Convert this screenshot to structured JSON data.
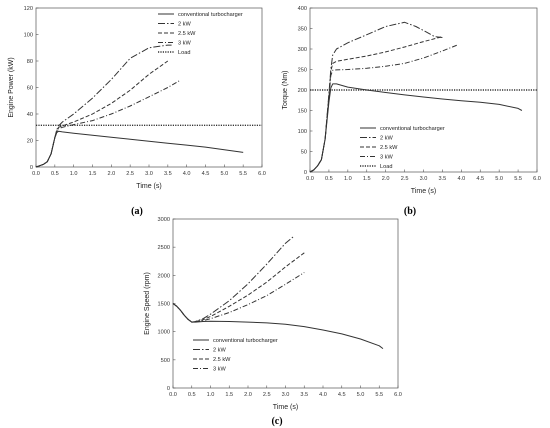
{
  "chart_data": [
    {
      "type": "line",
      "panel_label": "(a)",
      "xlabel": "Time (s)",
      "ylabel": "Engine Power (kW)",
      "xlim": [
        0,
        6
      ],
      "ylim": [
        0,
        120
      ],
      "xticks": [
        "0.0",
        "0.5",
        "1.0",
        "1.5",
        "2.0",
        "2.5",
        "3.0",
        "3.5",
        "4.0",
        "4.5",
        "5.0",
        "5.5",
        "6.0"
      ],
      "yticks": [
        "0",
        "20",
        "40",
        "60",
        "80",
        "100",
        "120"
      ],
      "legend": "top-right",
      "series": [
        {
          "name": "conventional turbocharger",
          "style": "solid",
          "x": [
            0,
            0.1,
            0.2,
            0.3,
            0.4,
            0.5,
            0.55,
            0.6,
            0.7,
            1.0,
            1.5,
            2.0,
            2.5,
            3.0,
            3.5,
            4.0,
            4.5,
            5.0,
            5.5
          ],
          "y": [
            0,
            1,
            2,
            4,
            10,
            22,
            26,
            27,
            26.5,
            25.5,
            24,
            22.5,
            21,
            19.5,
            18,
            16.5,
            15,
            13,
            11
          ]
        },
        {
          "name": "2 kW",
          "style": "dashdot-long",
          "x": [
            0,
            0.1,
            0.2,
            0.3,
            0.4,
            0.5,
            0.55,
            0.6,
            0.7,
            1.0,
            1.5,
            2.0,
            2.5,
            3.0,
            3.5,
            3.6
          ],
          "y": [
            0,
            1,
            2,
            4,
            10,
            22,
            28,
            31,
            34,
            40,
            52,
            66,
            82,
            90,
            92,
            92
          ]
        },
        {
          "name": "2.5 kW",
          "style": "dashed",
          "x": [
            0,
            0.1,
            0.2,
            0.3,
            0.4,
            0.5,
            0.55,
            0.6,
            0.7,
            1.0,
            1.5,
            2.0,
            2.5,
            3.0,
            3.5
          ],
          "y": [
            0,
            1,
            2,
            4,
            10,
            22,
            27,
            30,
            31,
            34,
            40,
            48,
            58,
            70,
            80
          ]
        },
        {
          "name": "3 kW",
          "style": "dashdot",
          "x": [
            0,
            0.1,
            0.2,
            0.3,
            0.4,
            0.5,
            0.55,
            0.6,
            0.7,
            1.0,
            1.5,
            2.0,
            2.5,
            3.0,
            3.5,
            3.8
          ],
          "y": [
            0,
            1,
            2,
            4,
            10,
            22,
            26,
            29,
            30,
            32,
            35,
            40,
            46,
            53,
            60,
            65
          ]
        },
        {
          "name": "Load",
          "style": "dotted",
          "x": [
            0,
            6
          ],
          "y": [
            31.5,
            31.5
          ]
        }
      ]
    },
    {
      "type": "line",
      "panel_label": "(b)",
      "xlabel": "Time (s)",
      "ylabel": "Torque (Nm)",
      "xlim": [
        0,
        6
      ],
      "ylim": [
        0,
        400
      ],
      "xticks": [
        "0.0",
        "0.5",
        "1.0",
        "1.5",
        "2.0",
        "2.5",
        "3.0",
        "3.5",
        "4.0",
        "4.5",
        "5.0",
        "5.5",
        "6.0"
      ],
      "yticks": [
        "0",
        "50",
        "100",
        "150",
        "200",
        "250",
        "300",
        "350",
        "400"
      ],
      "legend": "bottom-center",
      "series": [
        {
          "name": "conventional turbocharger",
          "style": "solid",
          "x": [
            0,
            0.1,
            0.2,
            0.3,
            0.4,
            0.5,
            0.55,
            0.6,
            0.7,
            1.0,
            1.5,
            2.0,
            2.5,
            3.0,
            3.5,
            4.0,
            4.5,
            5.0,
            5.5,
            5.6
          ],
          "y": [
            0,
            5,
            15,
            30,
            80,
            170,
            205,
            215,
            215,
            207,
            200,
            194,
            188,
            183,
            178,
            174,
            170,
            165,
            155,
            150
          ]
        },
        {
          "name": "2 kW",
          "style": "dashdot-long",
          "x": [
            0,
            0.1,
            0.2,
            0.3,
            0.4,
            0.5,
            0.55,
            0.6,
            0.7,
            1.0,
            1.5,
            2.0,
            2.5,
            2.8,
            3.0,
            3.3,
            3.5
          ],
          "y": [
            0,
            5,
            15,
            30,
            80,
            190,
            250,
            285,
            300,
            315,
            335,
            355,
            365,
            355,
            345,
            330,
            328
          ]
        },
        {
          "name": "2.5 kW",
          "style": "dashed",
          "x": [
            0,
            0.1,
            0.2,
            0.3,
            0.4,
            0.5,
            0.55,
            0.6,
            0.7,
            1.0,
            1.5,
            2.0,
            2.5,
            3.0,
            3.5
          ],
          "y": [
            0,
            5,
            15,
            30,
            80,
            185,
            245,
            265,
            270,
            275,
            283,
            293,
            305,
            318,
            330
          ]
        },
        {
          "name": "3 kW",
          "style": "dashdot",
          "x": [
            0,
            0.1,
            0.2,
            0.3,
            0.4,
            0.5,
            0.55,
            0.6,
            0.7,
            1.0,
            1.5,
            2.0,
            2.5,
            3.0,
            3.5,
            3.9
          ],
          "y": [
            0,
            5,
            15,
            30,
            80,
            180,
            235,
            248,
            249,
            250,
            253,
            258,
            265,
            278,
            295,
            310
          ]
        },
        {
          "name": "Load",
          "style": "dotted",
          "x": [
            0,
            6
          ],
          "y": [
            200,
            200
          ]
        }
      ]
    },
    {
      "type": "line",
      "panel_label": "(c)",
      "xlabel": "Time (s)",
      "ylabel": "Engine Speed (rpm)",
      "xlim": [
        0,
        6
      ],
      "ylim": [
        0,
        3000
      ],
      "xticks": [
        "0.0",
        "0.5",
        "1.0",
        "1.5",
        "2.0",
        "2.5",
        "3.0",
        "3.5",
        "4.0",
        "4.5",
        "5.0",
        "5.5",
        "6.0"
      ],
      "yticks": [
        "0",
        "500",
        "1000",
        "1500",
        "2000",
        "2500",
        "3000"
      ],
      "legend": "bottom-left",
      "series": [
        {
          "name": "conventional turbocharger",
          "style": "solid",
          "x": [
            0,
            0.1,
            0.2,
            0.3,
            0.4,
            0.5,
            0.6,
            0.8,
            1.0,
            1.5,
            2.0,
            2.5,
            3.0,
            3.5,
            4.0,
            4.5,
            5.0,
            5.5,
            5.6
          ],
          "y": [
            1500,
            1450,
            1380,
            1290,
            1220,
            1170,
            1170,
            1180,
            1185,
            1180,
            1170,
            1155,
            1130,
            1090,
            1030,
            960,
            870,
            750,
            700
          ]
        },
        {
          "name": "2 kW",
          "style": "dashdot-long",
          "x": [
            0,
            0.1,
            0.2,
            0.3,
            0.4,
            0.5,
            0.6,
            0.8,
            1.0,
            1.5,
            2.0,
            2.5,
            3.0,
            3.2
          ],
          "y": [
            1500,
            1450,
            1380,
            1290,
            1220,
            1170,
            1180,
            1230,
            1310,
            1550,
            1850,
            2200,
            2570,
            2680
          ]
        },
        {
          "name": "2.5 kW",
          "style": "dashed",
          "x": [
            0,
            0.1,
            0.2,
            0.3,
            0.4,
            0.5,
            0.6,
            0.8,
            1.0,
            1.5,
            2.0,
            2.5,
            3.0,
            3.5
          ],
          "y": [
            1500,
            1450,
            1380,
            1290,
            1220,
            1170,
            1180,
            1210,
            1270,
            1450,
            1650,
            1880,
            2150,
            2400
          ]
        },
        {
          "name": "3 kW",
          "style": "dashdot",
          "x": [
            0,
            0.1,
            0.2,
            0.3,
            0.4,
            0.5,
            0.6,
            0.8,
            1.0,
            1.5,
            2.0,
            2.5,
            3.0,
            3.5
          ],
          "y": [
            1500,
            1450,
            1380,
            1290,
            1220,
            1170,
            1175,
            1195,
            1230,
            1340,
            1480,
            1640,
            1840,
            2050
          ]
        }
      ]
    }
  ]
}
